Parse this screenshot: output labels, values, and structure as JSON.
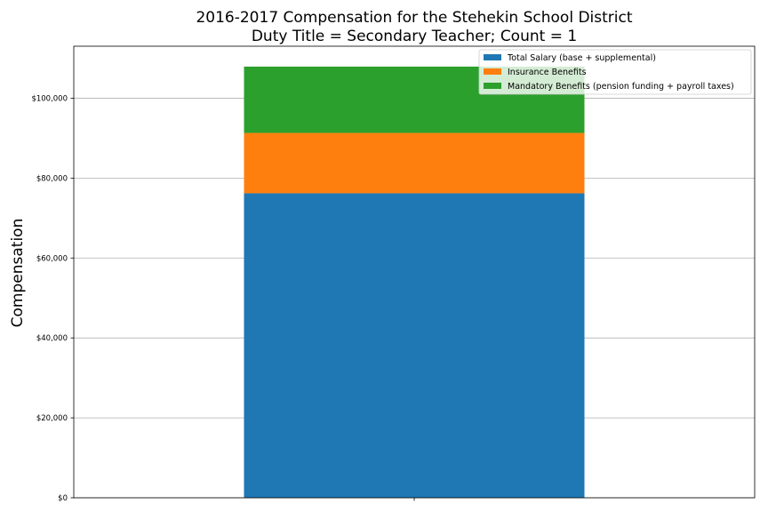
{
  "chart_data": {
    "type": "bar",
    "stacked": true,
    "title": "2016-2017 Compensation for the Stehekin School District",
    "subtitle": "Duty Title = Secondary Teacher; Count = 1",
    "xlabel": "",
    "ylabel": "Compensation",
    "categories": [
      ""
    ],
    "series": [
      {
        "name": "Total Salary (base + supplemental)",
        "color": "#1f77b4",
        "values": [
          76200
        ]
      },
      {
        "name": "Insurance Benefits",
        "color": "#ff7f0e",
        "values": [
          15100
        ]
      },
      {
        "name": "Mandatory Benefits (pension funding + payroll taxes)",
        "color": "#2ca02c",
        "values": [
          16600
        ]
      }
    ],
    "ylim": [
      0,
      113000
    ],
    "yticks": [
      0,
      20000,
      40000,
      60000,
      80000,
      100000
    ],
    "ytick_labels": [
      "$0",
      "$20,000",
      "$40,000",
      "$60,000",
      "$80,000",
      "$100,000"
    ],
    "grid": "y",
    "legend_position": "top-right"
  }
}
